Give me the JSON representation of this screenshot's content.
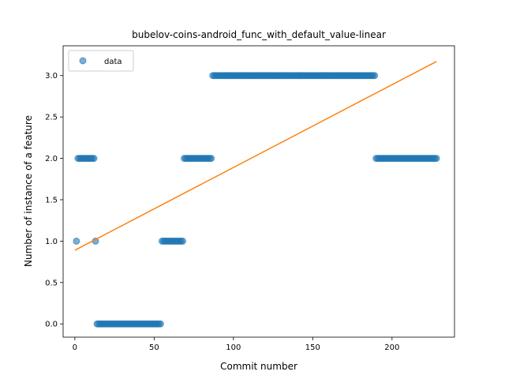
{
  "chart_data": {
    "type": "scatter",
    "title": "bubelov-coins-android_func_with_default_value-linear",
    "xlabel": "Commit number",
    "ylabel": "Number of instance of a feature",
    "xlim": [
      -7.4,
      239.4
    ],
    "ylim": [
      -0.16,
      3.36
    ],
    "xticks": [
      0,
      50,
      100,
      150,
      200
    ],
    "xtick_labels": [
      "0",
      "50",
      "100",
      "150",
      "200"
    ],
    "yticks": [
      0.0,
      0.5,
      1.0,
      1.5,
      2.0,
      2.5,
      3.0
    ],
    "ytick_labels": [
      "0.0",
      "0.5",
      "1.0",
      "1.5",
      "2.0",
      "2.5",
      "3.0"
    ],
    "grid": false,
    "legend": {
      "position": "upper-left",
      "entries": [
        "data"
      ]
    },
    "colors": {
      "data": "#1f77b4",
      "fit": "#ff7f0e"
    },
    "scatter_segments": [
      {
        "x_start": 1,
        "x_end": 1,
        "y": 1
      },
      {
        "x_start": 2,
        "x_end": 12,
        "y": 2
      },
      {
        "x_start": 13,
        "x_end": 13,
        "y": 1
      },
      {
        "x_start": 14,
        "x_end": 54,
        "y": 0
      },
      {
        "x_start": 55,
        "x_end": 68,
        "y": 1
      },
      {
        "x_start": 69,
        "x_end": 86,
        "y": 2
      },
      {
        "x_start": 87,
        "x_end": 189,
        "y": 3
      },
      {
        "x_start": 190,
        "x_end": 228,
        "y": 2
      }
    ],
    "fit_line": {
      "x": [
        0,
        228
      ],
      "y": [
        0.89,
        3.17
      ]
    }
  }
}
